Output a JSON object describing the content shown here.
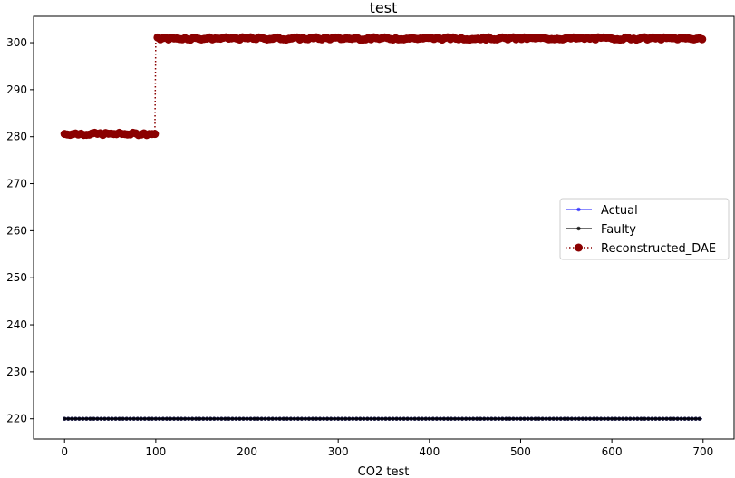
{
  "chart_data": {
    "type": "line",
    "title": "test",
    "xlabel": "CO2  test",
    "ylabel": "",
    "xlim": [
      -34,
      734
    ],
    "ylim": [
      215.7,
      305.6
    ],
    "xticks": [
      0,
      100,
      200,
      300,
      400,
      500,
      600,
      700
    ],
    "yticks": [
      220,
      230,
      240,
      250,
      260,
      270,
      280,
      290,
      300
    ],
    "grid": false,
    "legend": {
      "position": "center-right"
    },
    "series": [
      {
        "name": "Actual",
        "color": "#0000ff",
        "style": "solid-line-small-markers",
        "segments": [
          {
            "x_start": 0,
            "x_end": 699,
            "value": 220.0
          }
        ]
      },
      {
        "name": "Faulty",
        "color": "#000000",
        "style": "solid-line-small-markers",
        "segments": [
          {
            "x_start": 0,
            "x_end": 699,
            "value": 220.0
          }
        ]
      },
      {
        "name": "Reconstructed_DAE",
        "color": "#8b0000",
        "style": "dotted-line-large-markers",
        "segments": [
          {
            "x_start": 0,
            "x_end": 99,
            "value": 280.6
          },
          {
            "x_start": 100,
            "x_end": 699,
            "value": 300.9
          }
        ],
        "noise_amplitude": 0.25
      }
    ]
  }
}
